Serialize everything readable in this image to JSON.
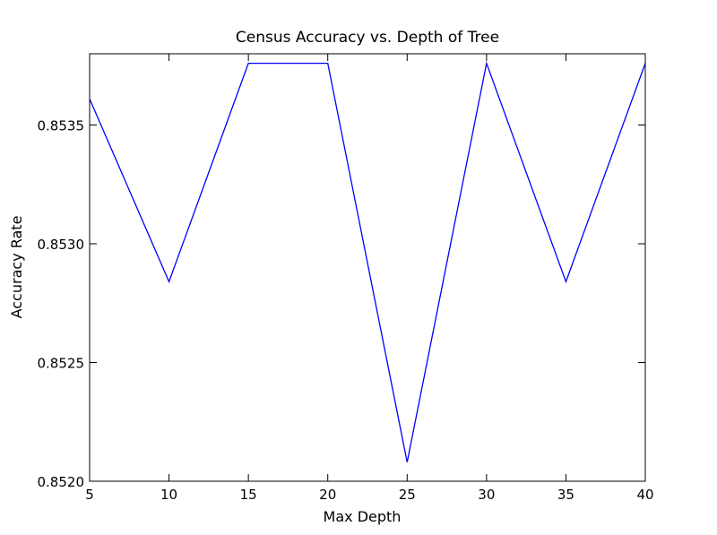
{
  "chart_data": {
    "type": "line",
    "title": "Census Accuracy vs. Depth of Tree",
    "xlabel": "Max Depth",
    "ylabel": "Accuracy Rate",
    "xlim": [
      5,
      40
    ],
    "ylim": [
      0.852,
      0.8538
    ],
    "x_ticks": [
      5,
      10,
      15,
      20,
      25,
      30,
      35,
      40
    ],
    "x_tick_labels": [
      "5",
      "10",
      "15",
      "20",
      "25",
      "30",
      "35",
      "40"
    ],
    "y_ticks": [
      0.852,
      0.8525,
      0.853,
      0.8535
    ],
    "y_tick_labels": [
      "0.8520",
      "0.8525",
      "0.8530",
      "0.8535"
    ],
    "grid": false,
    "series": [
      {
        "color": "#0000ff",
        "x": [
          5,
          10,
          15,
          20,
          25,
          30,
          35,
          40
        ],
        "y": [
          0.85361,
          0.85284,
          0.85376,
          0.85376,
          0.85208,
          0.85376,
          0.85284,
          0.85376
        ]
      }
    ]
  }
}
